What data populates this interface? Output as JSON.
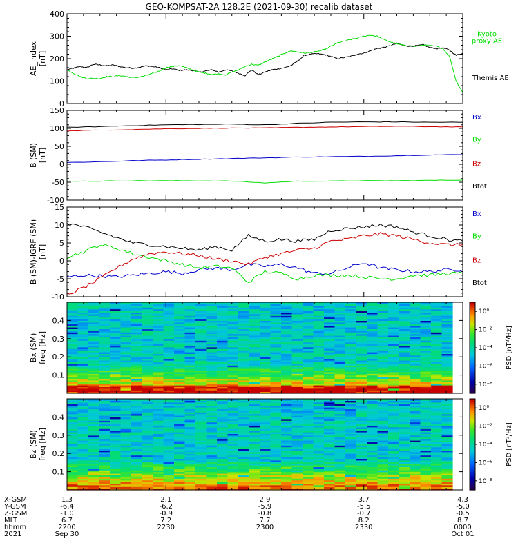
{
  "title": "GEO-KOMPSAT-2A 128.2E (2021-09-30) recalib dataset",
  "chart_data": [
    {
      "type": "line",
      "ylabel": "AE_index\n[nT]",
      "ylim": [
        0,
        400
      ],
      "yticks": [
        0,
        100,
        200,
        300,
        400
      ],
      "x": [
        0,
        2,
        4,
        6,
        8,
        10,
        12,
        14,
        16,
        18,
        20,
        22,
        24,
        26,
        28,
        30,
        32,
        34,
        36,
        38,
        40,
        42,
        44,
        46,
        48,
        50,
        52,
        54,
        56,
        58,
        60,
        62,
        64,
        66,
        68,
        70,
        72,
        74,
        76,
        78,
        80,
        82,
        84,
        86,
        88,
        90,
        92,
        94,
        96,
        98,
        100,
        102,
        104,
        106,
        108,
        110,
        112,
        114,
        116,
        118,
        120
      ],
      "series": [
        {
          "name": "Themis AE",
          "color": "#000000",
          "values": [
            150,
            158,
            165,
            160,
            175,
            172,
            168,
            172,
            165,
            160,
            158,
            162,
            168,
            165,
            160,
            150,
            155,
            148,
            150,
            148,
            140,
            145,
            150,
            140,
            150,
            145,
            135,
            125,
            150,
            128,
            140,
            150,
            155,
            160,
            170,
            190,
            215,
            220,
            222,
            218,
            210,
            200,
            205,
            210,
            220,
            225,
            235,
            245,
            250,
            258,
            268,
            260,
            255,
            258,
            262,
            250,
            245,
            248,
            238,
            215,
            225
          ]
        },
        {
          "name": "Kyoto proxy AE",
          "color": "#00dd00",
          "values": [
            150,
            135,
            120,
            112,
            112,
            112,
            120,
            120,
            125,
            120,
            115,
            118,
            125,
            135,
            145,
            160,
            165,
            170,
            160,
            150,
            140,
            135,
            130,
            132,
            128,
            140,
            150,
            165,
            175,
            170,
            185,
            198,
            210,
            225,
            235,
            230,
            225,
            228,
            232,
            240,
            255,
            270,
            278,
            285,
            292,
            300,
            305,
            300,
            285,
            275,
            265,
            260,
            258,
            255,
            262,
            258,
            255,
            245,
            210,
            100,
            50
          ]
        }
      ],
      "legend_labels": [
        "Kyoto\nproxy AE",
        "Themis AE"
      ]
    },
    {
      "type": "line",
      "ylabel": "B (SM)\n[nT]",
      "ylim": [
        -100,
        150
      ],
      "yticks": [
        -100,
        -50,
        0,
        50,
        100,
        150
      ],
      "x": [
        0,
        10,
        20,
        30,
        40,
        50,
        60,
        70,
        80,
        90,
        100,
        110,
        120
      ],
      "series": [
        {
          "name": "Bx",
          "color": "#0000cc",
          "values": [
            5,
            7,
            10,
            12,
            14,
            16,
            18,
            20,
            21,
            22,
            24,
            26,
            27
          ]
        },
        {
          "name": "By",
          "color": "#00dd00",
          "values": [
            -47,
            -47,
            -46,
            -46,
            -46,
            -47,
            -52,
            -47,
            -47,
            -46,
            -46,
            -45,
            -44
          ]
        },
        {
          "name": "Bz",
          "color": "#cc0000",
          "values": [
            93,
            95,
            97,
            99,
            100,
            101,
            101,
            103,
            104,
            105,
            106,
            105,
            104
          ]
        },
        {
          "name": "Btot",
          "color": "#000000",
          "values": [
            103,
            105,
            108,
            110,
            111,
            112,
            110,
            114,
            117,
            118,
            118,
            117,
            117
          ]
        }
      ]
    },
    {
      "type": "line",
      "ylabel": "B (SM)-IGRF (SM)\n[nT]",
      "ylim": [
        -10,
        15
      ],
      "yticks": [
        -10,
        -5,
        0,
        5,
        10,
        15
      ],
      "x": [
        0,
        5,
        10,
        15,
        20,
        25,
        30,
        35,
        40,
        45,
        50,
        55,
        60,
        65,
        70,
        75,
        80,
        85,
        90,
        95,
        100,
        105,
        110,
        115,
        120
      ],
      "series": [
        {
          "name": "Bx",
          "color": "#0000cc",
          "values": [
            -4.5,
            -4,
            -4.2,
            -4.5,
            -4,
            -3.5,
            -3,
            -3.5,
            -2.5,
            -2,
            -2.5,
            -1,
            -1.5,
            -1,
            -2,
            -3.5,
            -3.5,
            -2,
            -0.5,
            -2,
            -2.5,
            -3,
            -3,
            -2.5,
            -2.5
          ]
        },
        {
          "name": "By",
          "color": "#00dd00",
          "values": [
            1,
            2.5,
            4.5,
            3.5,
            2,
            1,
            0,
            -1,
            -2,
            -1.5,
            -2,
            -6,
            -3,
            -3.5,
            -5,
            -4,
            -4,
            -4,
            -4.5,
            -5,
            -5,
            -4,
            -4,
            -3.5,
            -3.5
          ]
        },
        {
          "name": "Bz",
          "color": "#cc0000",
          "values": [
            -9.5,
            -7.5,
            -5,
            -2,
            0.5,
            2,
            2.5,
            2,
            1.5,
            0.5,
            0,
            -1,
            1,
            2,
            3,
            3.5,
            5.5,
            6,
            7,
            7.5,
            7,
            6,
            5,
            4.5,
            4.5
          ]
        },
        {
          "name": "Btot",
          "color": "#000000",
          "values": [
            10.5,
            9.5,
            8,
            6.5,
            5,
            4.5,
            4,
            3.5,
            3,
            4,
            3,
            7,
            5.5,
            6,
            5.5,
            6,
            8.5,
            9,
            9.5,
            10,
            9.5,
            8,
            7,
            6,
            5.5
          ]
        }
      ]
    },
    {
      "type": "heatmap",
      "ylabel": "Bx (SM)\nfreq [Hz]",
      "ylim": [
        0,
        0.5
      ],
      "yticks": [
        0.1,
        0.2,
        0.3,
        0.4
      ],
      "colorbar": {
        "label": "PSD [nT²/Hz]",
        "log_range": [
          -9,
          1
        ],
        "ticks": [
          "10⁰",
          "10⁻²",
          "10⁻⁴",
          "10⁻⁶",
          "10⁻⁸"
        ],
        "tick_exponents": [
          0,
          -2,
          -4,
          -6,
          -8
        ]
      }
    },
    {
      "type": "heatmap",
      "ylabel": "Bz (SM)\nfreq [Hz]",
      "ylim": [
        0,
        0.5
      ],
      "yticks": [
        0.1,
        0.2,
        0.3,
        0.4
      ],
      "colorbar": {
        "label": "PSD [nT²/Hz]",
        "log_range": [
          -9,
          1
        ],
        "ticks": [
          "10⁰",
          "10⁻²",
          "10⁻⁴",
          "10⁻⁶",
          "10⁻⁸"
        ],
        "tick_exponents": [
          0,
          -2,
          -4,
          -6,
          -8
        ]
      }
    }
  ],
  "x_axis": {
    "row_labels": [
      "X-GSM",
      "Y-GSM",
      "Z-GSM",
      "MLT",
      "hhmm",
      "2021"
    ],
    "ticks": [
      {
        "minutes": 0,
        "values": [
          "1.3",
          "-6.4",
          "-1.0",
          "6.7",
          "2200",
          "Sep 30"
        ]
      },
      {
        "minutes": 30,
        "values": [
          "2.1",
          "-6.2",
          "-0.9",
          "7.2",
          "2230",
          ""
        ]
      },
      {
        "minutes": 60,
        "values": [
          "2.9",
          "-5.9",
          "-0.8",
          "7.7",
          "2300",
          ""
        ]
      },
      {
        "minutes": 90,
        "values": [
          "3.7",
          "-5.5",
          "-0.7",
          "8.2",
          "2330",
          ""
        ]
      },
      {
        "minutes": 120,
        "values": [
          "4.3",
          "-5.0",
          "-0.5",
          "8.7",
          "0000",
          "Oct 01"
        ]
      }
    ]
  }
}
